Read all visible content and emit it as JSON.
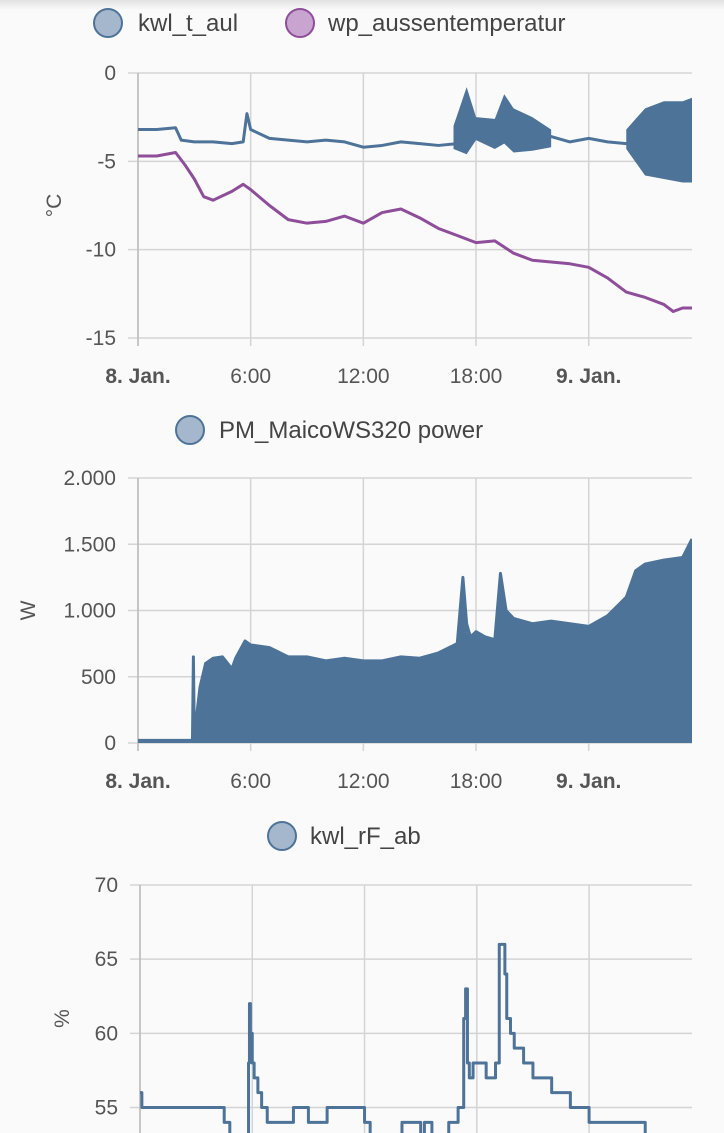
{
  "colors": {
    "blue": "#4e7399",
    "purple": "#8e4e9a",
    "blue_legend_fill": "#a4b7cc",
    "purple_legend_fill": "#c9a4d0"
  },
  "chart_data": [
    {
      "type": "line",
      "title": "",
      "ylabel": "°C",
      "ylim": [
        -15,
        0
      ],
      "yticks": [
        0,
        -5,
        -10,
        -15
      ],
      "ytick_labels": [
        "0",
        "-5",
        "-10",
        "-15"
      ],
      "xlim": [
        0,
        29.5
      ],
      "xticks": [
        0,
        6,
        12,
        18,
        24
      ],
      "xtick_labels": [
        "8. Jan.",
        "6:00",
        "12:00",
        "18:00",
        "9. Jan."
      ],
      "grid": true,
      "legend_position": "top-center",
      "series": [
        {
          "name": "kwl_t_aul",
          "color": "#4e7399",
          "x": [
            0,
            1,
            2,
            2.3,
            3,
            4,
            5,
            5.6,
            5.8,
            6,
            7,
            8,
            9,
            10,
            11,
            12,
            13,
            14,
            15,
            16,
            17,
            17.5,
            18,
            19,
            19.5,
            20,
            21,
            22,
            23,
            24,
            25,
            26,
            27,
            28,
            29,
            29.5
          ],
          "y": [
            -3.2,
            -3.2,
            -3.1,
            -3.8,
            -3.9,
            -3.9,
            -4.0,
            -3.9,
            -2.3,
            -3.2,
            -3.7,
            -3.8,
            -3.9,
            -3.8,
            -3.9,
            -4.2,
            -4.1,
            -3.9,
            -4.0,
            -4.1,
            -4.0,
            -3.6,
            -3.5,
            -3.6,
            -2.7,
            -3.0,
            -3.5,
            -3.6,
            -3.9,
            -3.7,
            -3.9,
            -4.0,
            -4.0,
            -3.8,
            -3.8,
            -3.8
          ],
          "band": [
            {
              "x": [
                16.8,
                17.5,
                18,
                19,
                19.5,
                20,
                21,
                22
              ],
              "lo": [
                -4.3,
                -4.6,
                -3.8,
                -4.3,
                -4.0,
                -4.5,
                -4.4,
                -4.2
              ],
              "hi": [
                -3.0,
                -0.8,
                -2.5,
                -2.6,
                -1.2,
                -2.0,
                -2.5,
                -3.2
              ]
            },
            {
              "x": [
                26,
                27,
                28,
                29,
                29.5
              ],
              "lo": [
                -4.3,
                -5.8,
                -6.0,
                -6.2,
                -6.2
              ],
              "hi": [
                -3.2,
                -2.0,
                -1.6,
                -1.6,
                -1.4
              ]
            }
          ]
        },
        {
          "name": "wp_aussentemperatur",
          "color": "#8e4e9a",
          "x": [
            0,
            1,
            2,
            2.5,
            3,
            3.5,
            4,
            5,
            5.6,
            6,
            7,
            8,
            9,
            10,
            11,
            12,
            13,
            14,
            15,
            16,
            17,
            18,
            19,
            20,
            21,
            22,
            23,
            24,
            25,
            26,
            27,
            28,
            28.5,
            29,
            29.5
          ],
          "y": [
            -4.7,
            -4.7,
            -4.5,
            -5.2,
            -6.0,
            -7.0,
            -7.2,
            -6.7,
            -6.3,
            -6.6,
            -7.5,
            -8.3,
            -8.5,
            -8.4,
            -8.1,
            -8.5,
            -7.9,
            -7.7,
            -8.2,
            -8.8,
            -9.2,
            -9.6,
            -9.5,
            -10.2,
            -10.6,
            -10.7,
            -10.8,
            -11.0,
            -11.6,
            -12.4,
            -12.7,
            -13.1,
            -13.5,
            -13.3,
            -13.3
          ]
        }
      ]
    },
    {
      "type": "area",
      "title": "",
      "ylabel": "W",
      "ylim": [
        0,
        2000
      ],
      "yticks": [
        2000,
        1500,
        1000,
        500,
        0
      ],
      "ytick_labels": [
        "2.000",
        "1.500",
        "1.000",
        "500",
        "0"
      ],
      "xlim": [
        0,
        29.5
      ],
      "xticks": [
        0,
        6,
        12,
        18,
        24
      ],
      "xtick_labels": [
        "8. Jan.",
        "6:00",
        "12:00",
        "18:00",
        "9. Jan."
      ],
      "grid": true,
      "legend_position": "top-center",
      "series": [
        {
          "name": "PM_MaicoWS320 power",
          "color": "#4e7399",
          "x": [
            0,
            2.9,
            2.95,
            3.0,
            3.05,
            3.1,
            3.3,
            3.6,
            4.0,
            4.5,
            5.0,
            5.2,
            5.7,
            6.0,
            7.0,
            8.0,
            9.0,
            10.0,
            11.0,
            12.0,
            13.0,
            14.0,
            15.0,
            16.0,
            17.0,
            17.3,
            17.5,
            17.7,
            18.0,
            18.5,
            19.0,
            19.3,
            19.6,
            20.0,
            21.0,
            22.0,
            23.0,
            24.0,
            25.0,
            26.0,
            26.5,
            27.0,
            28.0,
            29.0,
            29.5
          ],
          "y": [
            20,
            20,
            650,
            20,
            100,
            180,
            420,
            600,
            640,
            650,
            560,
            640,
            770,
            740,
            720,
            650,
            650,
            620,
            640,
            620,
            620,
            650,
            640,
            680,
            750,
            1250,
            900,
            800,
            840,
            800,
            780,
            1280,
            1000,
            940,
            900,
            920,
            900,
            880,
            960,
            1100,
            1300,
            1350,
            1380,
            1400,
            1540
          ]
        }
      ]
    },
    {
      "type": "line",
      "title": "",
      "ylabel": "%",
      "ylim": [
        52,
        70
      ],
      "yticks": [
        70,
        65,
        60,
        55
      ],
      "ytick_labels": [
        "70",
        "65",
        "60",
        "55"
      ],
      "xlim": [
        0,
        29.5
      ],
      "xticks": [
        0,
        6,
        12,
        18,
        24
      ],
      "grid": true,
      "legend_position": "top-center",
      "series": [
        {
          "name": "kwl_rF_ab",
          "color": "#4e7399",
          "step": true,
          "x": [
            0,
            0.1,
            0.2,
            2.5,
            4.5,
            4.8,
            5.7,
            5.8,
            5.85,
            5.9,
            6.0,
            6.1,
            6.3,
            6.5,
            6.8,
            7.0,
            8.0,
            8.2,
            9.0,
            10.0,
            11.5,
            12.0,
            12.3,
            13.0,
            14.0,
            15.0,
            15.2,
            15.6,
            16.5,
            17.0,
            17.3,
            17.4,
            17.5,
            17.6,
            17.8,
            18.0,
            18.5,
            19.0,
            19.2,
            19.5,
            19.6,
            19.8,
            20.0,
            20.5,
            21.0,
            22.0,
            23.0,
            24.0,
            26.0,
            27.0,
            28.0,
            29.5
          ],
          "y": [
            56,
            55,
            55,
            55,
            54,
            53,
            53,
            58,
            62,
            60,
            58,
            57,
            56,
            55,
            54,
            54,
            54,
            55,
            54,
            55,
            55,
            54,
            53,
            53,
            54,
            53,
            54,
            53,
            54,
            55,
            61,
            63,
            58,
            57,
            58,
            58,
            57,
            58,
            66,
            64,
            61,
            60,
            59,
            58,
            57,
            56,
            55,
            54,
            54,
            53,
            52,
            52
          ]
        }
      ]
    }
  ]
}
